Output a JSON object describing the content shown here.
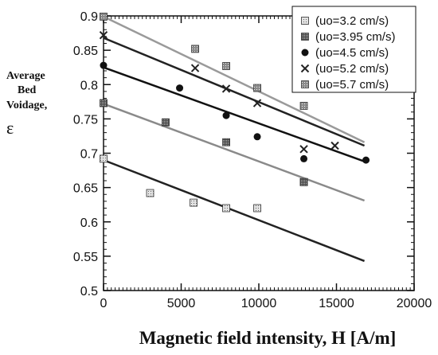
{
  "chart_data": {
    "type": "scatter",
    "title": "",
    "xlabel": "Magnetic field intensity, H [A/m]",
    "ylabel_lines": [
      "Average",
      "Bed",
      "Voidage,"
    ],
    "ylabel_symbol": "ε",
    "xlim": [
      0,
      20000
    ],
    "ylim": [
      0.5,
      0.9
    ],
    "x_ticks": [
      0,
      5000,
      10000,
      15000,
      20000
    ],
    "y_ticks": [
      0.5,
      0.55,
      0.6,
      0.65,
      0.7,
      0.75,
      0.8,
      0.85,
      0.9
    ],
    "y_tick_labels": [
      "0.5",
      "0.55",
      "0.6",
      "0.65",
      "0.7",
      "0.75",
      "0.8",
      "0.85",
      "0.9"
    ],
    "legend_position": "top-right",
    "series": [
      {
        "name": "(uo=3.2 cm/s)",
        "marker": "square-light",
        "color": "#9a9a9a",
        "line_color": "#222222",
        "x": [
          0,
          3000,
          5800,
          7900,
          9900,
          12900
        ],
        "y": [
          0.692,
          0.642,
          0.628,
          0.62,
          0.62,
          0.658
        ],
        "fit": {
          "x": [
            0,
            16800
          ],
          "y": [
            0.69,
            0.543
          ]
        }
      },
      {
        "name": "(uo=3.95 cm/s)",
        "marker": "square-dark",
        "color": "#6a6a6a",
        "line_color": "#8a8a8a",
        "x": [
          0,
          4000,
          7900,
          12900
        ],
        "y": [
          0.773,
          0.745,
          0.716,
          0.658
        ],
        "fit": {
          "x": [
            0,
            16800
          ],
          "y": [
            0.772,
            0.631
          ]
        }
      },
      {
        "name": "(uo=4.5 cm/s)",
        "marker": "circle",
        "color": "#111111",
        "line_color": "#111111",
        "x": [
          0,
          4900,
          7900,
          9900,
          12900,
          16900
        ],
        "y": [
          0.828,
          0.795,
          0.755,
          0.724,
          0.692,
          0.69
        ],
        "fit": {
          "x": [
            0,
            16800
          ],
          "y": [
            0.825,
            0.688
          ]
        }
      },
      {
        "name": "(uo=5.2 cm/s)",
        "marker": "x",
        "color": "#222222",
        "line_color": "#222222",
        "x": [
          0,
          5900,
          7900,
          9900,
          12900,
          14900
        ],
        "y": [
          0.872,
          0.824,
          0.794,
          0.773,
          0.706,
          0.711
        ],
        "fit": {
          "x": [
            0,
            16800
          ],
          "y": [
            0.868,
            0.711
          ]
        }
      },
      {
        "name": "(uo=5.7 cm/s)",
        "marker": "square-dotted",
        "color": "#7c7c7c",
        "line_color": "#9a9a9a",
        "x": [
          0,
          5900,
          7900,
          9900,
          12900
        ],
        "y": [
          0.899,
          0.852,
          0.827,
          0.795,
          0.769
        ],
        "fit": {
          "x": [
            0,
            16800
          ],
          "y": [
            0.899,
            0.716
          ]
        }
      }
    ]
  }
}
